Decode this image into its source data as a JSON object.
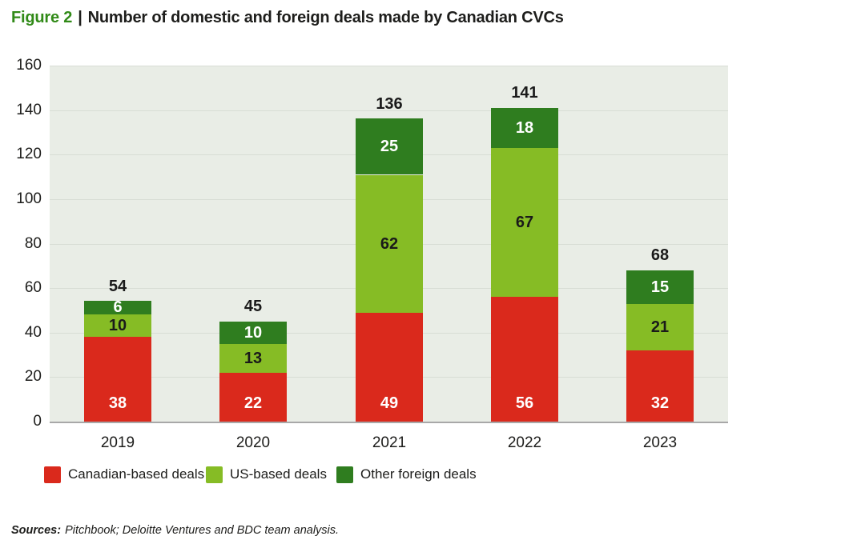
{
  "title": {
    "figure": "Figure 2",
    "separator": "|",
    "text": "Number of domestic and foreign deals made by Canadian CVCs"
  },
  "chart_data": {
    "type": "bar",
    "stacked": true,
    "title": "Number of domestic and foreign deals made by Canadian CVCs",
    "xlabel": "",
    "ylabel": "",
    "categories": [
      "2019",
      "2020",
      "2021",
      "2022",
      "2023"
    ],
    "series": [
      {
        "name": "Canadian-based deals",
        "color": "#DA291C",
        "label_color": "#FFFFFF",
        "values": [
          38,
          22,
          49,
          56,
          32
        ]
      },
      {
        "name": "US-based deals",
        "color": "#86BC25",
        "label_color": "#1A1A1A",
        "values": [
          10,
          13,
          62,
          67,
          21
        ]
      },
      {
        "name": "Other foreign deals",
        "color": "#2F7D1F",
        "label_color": "#FFFFFF",
        "values": [
          6,
          10,
          25,
          18,
          15
        ]
      }
    ],
    "totals": [
      54,
      45,
      136,
      141,
      68
    ],
    "ylim": [
      0,
      160
    ],
    "yticks": [
      0,
      20,
      40,
      60,
      80,
      100,
      120,
      140,
      160
    ],
    "grid": true,
    "legend_position": "bottom",
    "plot_bg": "#E9EDE6",
    "grid_color": "#D8DDD5",
    "axis_color": "#A8A8A8"
  },
  "sources": {
    "label": "Sources:",
    "text": "Pitchbook; Deloitte Ventures and BDC team analysis."
  }
}
